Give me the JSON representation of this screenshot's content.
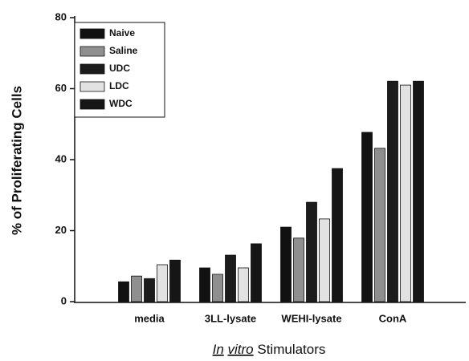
{
  "chart_data": {
    "type": "bar",
    "ylabel": "% of Proliferating Cells",
    "xlabel": [
      "In",
      "vitro",
      "Stimulators"
    ],
    "categories": [
      "media",
      "3LL-lysate",
      "WEHI-lysate",
      "ConA"
    ],
    "series": [
      {
        "name": "Naive",
        "color": "#111111",
        "values": [
          5.6,
          9.5,
          21,
          47.7
        ]
      },
      {
        "name": "Saline",
        "color": "#8f8f8f",
        "values": [
          7.2,
          7.7,
          17.9,
          43.2
        ]
      },
      {
        "name": "UDC",
        "color": "#1c1c1c",
        "values": [
          6.5,
          13.1,
          28,
          62.1
        ]
      },
      {
        "name": "LDC",
        "color": "#e2e2e2",
        "values": [
          10.4,
          9.5,
          23.3,
          61
        ]
      },
      {
        "name": "WDC",
        "color": "#161616",
        "values": [
          11.7,
          16.3,
          37.5,
          62.1
        ]
      }
    ],
    "ylim": [
      0,
      80
    ],
    "yticks": [
      0,
      20,
      40,
      60,
      80
    ],
    "legend": "upper left"
  }
}
